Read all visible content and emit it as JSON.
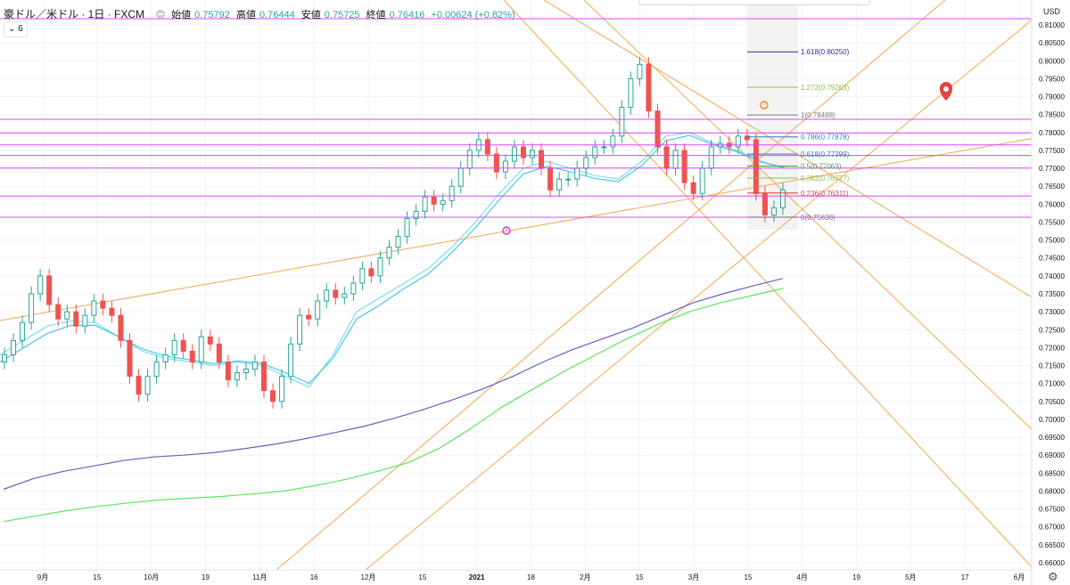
{
  "header": {
    "symbol": "豪ドル／米ドル · 1日 · FXCM",
    "open_label": "始値",
    "open": "0.75792",
    "high_label": "高値",
    "high": "0.76444",
    "low_label": "安値",
    "low": "0.75725",
    "close_label": "終値",
    "close": "0.76416",
    "change": "+0.00624 (+0.82%)"
  },
  "indicator_count": "6",
  "currency": "USD",
  "chart_data": {
    "type": "candlestick",
    "y_range": [
      0.66,
      0.81
    ],
    "y_ticks": [
      "0.81000",
      "0.80500",
      "0.80000",
      "0.79500",
      "0.79000",
      "0.78500",
      "0.78000",
      "0.77500",
      "0.77000",
      "0.76500",
      "0.76000",
      "0.75500",
      "0.75000",
      "0.74500",
      "0.74000",
      "0.73500",
      "0.73000",
      "0.72500",
      "0.72000",
      "0.71500",
      "0.71000",
      "0.70500",
      "0.70000",
      "0.69500",
      "0.69000",
      "0.68500",
      "0.68000",
      "0.67500",
      "0.67000",
      "0.66500",
      "0.66000"
    ],
    "x_ticks": [
      "9月",
      "15",
      "10月",
      "19",
      "11月",
      "16",
      "12月",
      "15",
      "2021",
      "18",
      "2月",
      "15",
      "3月",
      "15",
      "4月",
      "19",
      "5月",
      "17",
      "6月"
    ],
    "current_price": "0.76416",
    "price_lines": [
      {
        "label": "0.81173",
        "value": 0.81173
      },
      {
        "label": "0.78369",
        "value": 0.78369
      },
      {
        "label": "0.77990",
        "value": 0.7799
      },
      {
        "label": "0.77653",
        "value": 0.77653
      },
      {
        "label": "0.77359",
        "value": 0.77359
      },
      {
        "label": "0.77007",
        "value": 0.77007
      },
      {
        "label": "0.76228",
        "value": 0.76228
      },
      {
        "label": "0.75637",
        "value": 0.75637
      }
    ],
    "fib_levels": [
      {
        "label": "1.618(0.80250)",
        "value": 0.8025,
        "color": "#2c2ca8"
      },
      {
        "label": "1.272(0.79263)",
        "value": 0.79263,
        "color": "#8bc34a"
      },
      {
        "label": "1(0.78488)",
        "value": 0.78488,
        "color": "#787b86"
      },
      {
        "label": "0.786(0.77878)",
        "value": 0.77878,
        "color": "#2f7dc4"
      },
      {
        "label": "0.618(0.77399)",
        "value": 0.77399,
        "color": "#2f7dc4"
      },
      {
        "label": "0.5(0.77063)",
        "value": 0.77063,
        "color": "#43a047"
      },
      {
        "label": "0.382(0.76727)",
        "value": 0.76727,
        "color": "#8bc34a"
      },
      {
        "label": "0.236(0.76311)",
        "value": 0.76311,
        "color": "#e53935"
      },
      {
        "label": "0(0.75638)",
        "value": 0.75638,
        "color": "#787b86"
      }
    ],
    "series": [
      {
        "name": "ma_slow_purple",
        "color": "#6a5fbf",
        "values": [
          0.6805,
          0.6835,
          0.6855,
          0.687,
          0.6885,
          0.6895,
          0.69,
          0.6907,
          0.6918,
          0.693,
          0.6945,
          0.6962,
          0.698,
          0.7002,
          0.7027,
          0.7055,
          0.7085,
          0.712,
          0.716,
          0.7195,
          0.7225,
          0.7255,
          0.729,
          0.7325,
          0.735,
          0.7372,
          0.7393
        ]
      },
      {
        "name": "ma_200_green",
        "color": "#5ce65c",
        "values": [
          0.6715,
          0.673,
          0.6745,
          0.6757,
          0.6767,
          0.6775,
          0.678,
          0.6785,
          0.6792,
          0.68,
          0.6815,
          0.6833,
          0.6855,
          0.688,
          0.692,
          0.6975,
          0.7035,
          0.7085,
          0.7135,
          0.718,
          0.7225,
          0.7265,
          0.73,
          0.7325,
          0.7345,
          0.7365
        ]
      },
      {
        "name": "ma_short_cyan",
        "color": "#7ddcf0",
        "values": [
          0.718,
          0.722,
          0.726,
          0.7275,
          0.727,
          0.723,
          0.719,
          0.717,
          0.716,
          0.715,
          0.716,
          0.715,
          0.712,
          0.709,
          0.718,
          0.73,
          0.734,
          0.738,
          0.742,
          0.748,
          0.755,
          0.763,
          0.77,
          0.772,
          0.77,
          0.768,
          0.767,
          0.772,
          0.779,
          0.78,
          0.777,
          0.775,
          0.772,
          0.77
        ]
      },
      {
        "name": "ma_mid_cyan",
        "color": "#4cc6e3",
        "values": [
          0.716,
          0.72,
          0.724,
          0.7262,
          0.7262,
          0.723,
          0.7196,
          0.7176,
          0.7166,
          0.7155,
          0.7163,
          0.7156,
          0.713,
          0.71,
          0.717,
          0.728,
          0.732,
          0.7365,
          0.7405,
          0.7465,
          0.7535,
          0.7612,
          0.7684,
          0.7706,
          0.769,
          0.7672,
          0.7663,
          0.7708,
          0.7777,
          0.7792,
          0.7766,
          0.7746,
          0.7718,
          0.7702
        ]
      }
    ],
    "candles_close": [
      0.718,
      0.722,
      0.727,
      0.735,
      0.74,
      0.732,
      0.728,
      0.73,
      0.726,
      0.729,
      0.733,
      0.731,
      0.729,
      0.722,
      0.712,
      0.707,
      0.712,
      0.716,
      0.718,
      0.722,
      0.719,
      0.716,
      0.723,
      0.721,
      0.716,
      0.711,
      0.713,
      0.714,
      0.716,
      0.708,
      0.705,
      0.712,
      0.721,
      0.729,
      0.728,
      0.733,
      0.736,
      0.734,
      0.735,
      0.738,
      0.742,
      0.74,
      0.745,
      0.748,
      0.751,
      0.756,
      0.758,
      0.762,
      0.76,
      0.761,
      0.765,
      0.77,
      0.775,
      0.778,
      0.774,
      0.769,
      0.772,
      0.776,
      0.773,
      0.775,
      0.77,
      0.764,
      0.767,
      0.767,
      0.77,
      0.773,
      0.776,
      0.776,
      0.779,
      0.787,
      0.795,
      0.799,
      0.786,
      0.776,
      0.77,
      0.775,
      0.766,
      0.763,
      0.77,
      0.776,
      0.777,
      0.776,
      0.779,
      0.778,
      0.763,
      0.757,
      0.759,
      0.764
    ],
    "annotations": [
      "alarm-clock-marker",
      "alarm-clock-marker",
      "location-pin-marker"
    ]
  }
}
